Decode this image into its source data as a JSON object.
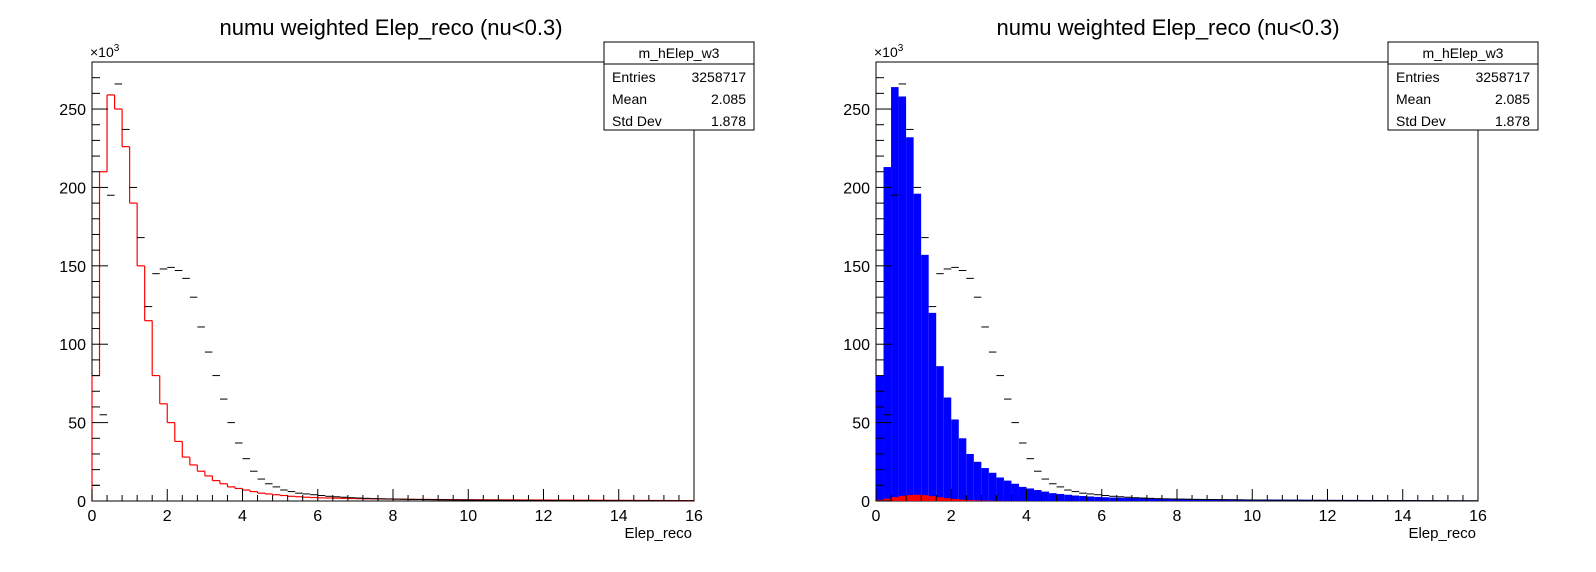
{
  "colors": {
    "data_markers": "#000000",
    "mc_total": "#ff0000",
    "stack_fill": "#0000ff",
    "stack_bottom": "#ff0000",
    "frame": "#000000",
    "background": "#ffffff"
  },
  "chart_data": [
    {
      "type": "histogram",
      "title": "numu weighted Elep_reco (nu<0.3)",
      "xlabel": "Elep_reco",
      "ylabel": "",
      "y_multiplier": "×10^3",
      "xlim": [
        0,
        16
      ],
      "ylim": [
        0,
        280
      ],
      "x_ticks": [
        0,
        2,
        4,
        6,
        8,
        10,
        12,
        14,
        16
      ],
      "y_ticks": [
        0,
        50,
        100,
        150,
        200,
        250
      ],
      "stats_box": {
        "name": "m_hElep_w3",
        "rows": [
          {
            "label": "Entries",
            "value": "3258717"
          },
          {
            "label": "Mean",
            "value": "2.085"
          },
          {
            "label": "Std Dev",
            "value": "1.878"
          }
        ]
      },
      "bin_width": 0.2,
      "series": [
        {
          "style": "markers",
          "values": [
            10,
            55,
            195,
            266,
            237,
            200,
            168,
            124,
            145,
            148,
            149,
            147,
            142,
            130,
            111,
            95,
            80,
            65,
            50,
            37,
            27,
            19,
            14,
            11,
            9,
            7,
            6,
            5,
            4.5,
            4,
            3.5,
            3,
            2.7,
            2.4,
            2.1,
            1.9,
            1.7,
            1.5,
            1.4,
            1.3,
            1.2,
            1.1,
            1.0,
            0.95,
            0.9,
            0.85,
            0.8,
            0.75,
            0.7,
            0.65,
            0.6,
            0.55,
            0.5,
            0.48,
            0.45,
            0.42,
            0.4,
            0.38,
            0.36,
            0.34,
            0.32,
            0.3,
            0.29,
            0.28,
            0.27,
            0.26,
            0.25,
            0.24,
            0.23,
            0.22,
            0.21,
            0.2,
            0.19,
            0.18,
            0.17,
            0.16,
            0.15,
            0.14,
            0.13,
            0.12
          ]
        },
        {
          "style": "step",
          "values": [
            80,
            210,
            259,
            250,
            226,
            190,
            150,
            115,
            80,
            62,
            50,
            38,
            28,
            23,
            19,
            16,
            13,
            11,
            9,
            8,
            7,
            6,
            5,
            4.5,
            4,
            3.5,
            3,
            2.7,
            2.4,
            2.2,
            2,
            1.9,
            1.8,
            1.7,
            1.6,
            1.5,
            1.4,
            1.35,
            1.3,
            1.25,
            1.2,
            1.15,
            1.1,
            1.05,
            1.0,
            0.95,
            0.9,
            0.88,
            0.86,
            0.84,
            0.82,
            0.8,
            0.78,
            0.76,
            0.74,
            0.72,
            0.7,
            0.68,
            0.66,
            0.64,
            0.62,
            0.6,
            0.58,
            0.56,
            0.54,
            0.52,
            0.5,
            0.48,
            0.46,
            0.44,
            0.42,
            0.4,
            0.38,
            0.36,
            0.34,
            0.32,
            0.3,
            0.28,
            0.26,
            0.24
          ]
        }
      ]
    },
    {
      "type": "histogram",
      "title": "numu weighted Elep_reco (nu<0.3)",
      "xlabel": "Elep_reco",
      "ylabel": "",
      "y_multiplier": "×10^3",
      "xlim": [
        0,
        16
      ],
      "ylim": [
        0,
        280
      ],
      "x_ticks": [
        0,
        2,
        4,
        6,
        8,
        10,
        12,
        14,
        16
      ],
      "y_ticks": [
        0,
        50,
        100,
        150,
        200,
        250
      ],
      "stats_box": {
        "name": "m_hElep_w3",
        "rows": [
          {
            "label": "Entries",
            "value": "3258717"
          },
          {
            "label": "Mean",
            "value": "2.085"
          },
          {
            "label": "Std Dev",
            "value": "1.878"
          }
        ]
      },
      "bin_width": 0.2,
      "series": [
        {
          "style": "markers",
          "values": [
            10,
            55,
            195,
            266,
            237,
            200,
            168,
            124,
            145,
            148,
            149,
            147,
            142,
            130,
            111,
            95,
            80,
            65,
            50,
            37,
            27,
            19,
            14,
            11,
            9,
            7,
            6,
            5,
            4.5,
            4,
            3.5,
            3,
            2.7,
            2.4,
            2.1,
            1.9,
            1.7,
            1.5,
            1.4,
            1.3,
            1.2,
            1.1,
            1.0,
            0.95,
            0.9,
            0.85,
            0.8,
            0.75,
            0.7,
            0.65,
            0.6,
            0.55,
            0.5,
            0.48,
            0.45,
            0.42,
            0.4,
            0.38,
            0.36,
            0.34,
            0.32,
            0.3,
            0.29,
            0.28,
            0.27,
            0.26,
            0.25,
            0.24,
            0.23,
            0.22,
            0.21,
            0.2,
            0.19,
            0.18,
            0.17,
            0.16,
            0.15,
            0.14,
            0.13,
            0.12
          ]
        },
        {
          "style": "filled",
          "color": "#0000ff",
          "values": [
            80,
            213,
            264,
            258,
            232,
            196,
            157,
            120,
            86,
            66,
            52,
            40,
            30,
            25,
            21,
            18,
            15,
            13,
            11,
            9,
            8,
            7,
            6,
            5,
            4.5,
            4,
            3.5,
            3.2,
            2.9,
            2.6,
            2.4,
            2.2,
            2.1,
            2.0,
            1.9,
            1.8,
            1.7,
            1.6,
            1.55,
            1.5,
            1.45,
            1.4,
            1.35,
            1.3,
            1.25,
            1.2,
            1.15,
            1.1,
            1.05,
            1.0,
            0.98,
            0.96,
            0.94,
            0.92,
            0.9,
            0.88,
            0.86,
            0.84,
            0.82,
            0.8,
            0.78,
            0.76,
            0.74,
            0.72,
            0.7,
            0.68,
            0.66,
            0.64,
            0.62,
            0.6,
            0.58,
            0.56,
            0.54,
            0.52,
            0.5,
            0.48,
            0.46,
            0.44,
            0.42,
            0.4
          ]
        },
        {
          "style": "filled",
          "color": "#ff0000",
          "values": [
            0.8,
            1.5,
            2.5,
            3.3,
            3.8,
            4,
            3.7,
            3.1,
            2.4,
            1.8,
            1.3,
            0.9,
            0.6,
            0.4,
            0.25,
            0.15,
            0.1,
            0.07,
            0.05,
            0.04
          ]
        }
      ]
    }
  ]
}
